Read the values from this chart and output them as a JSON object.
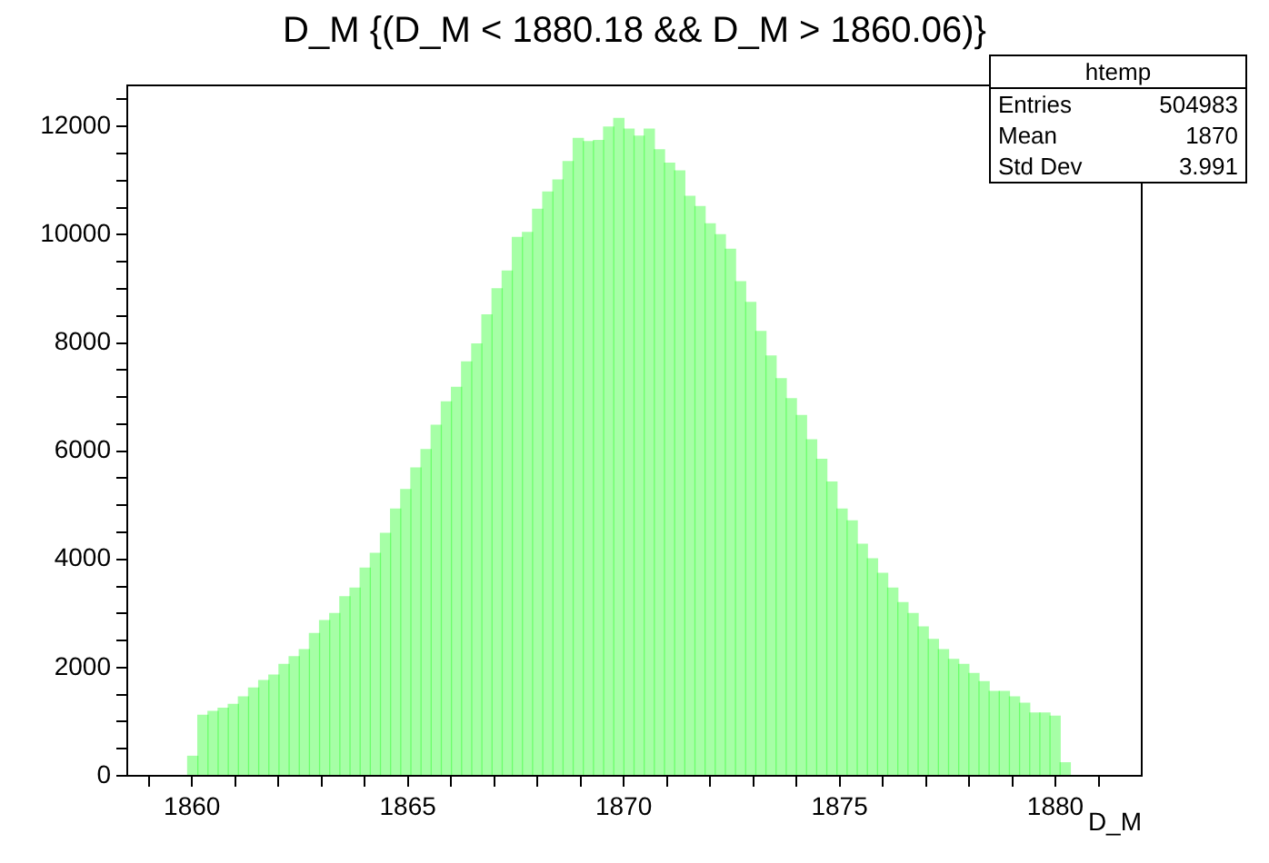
{
  "chart_data": {
    "type": "histogram",
    "title": "D_M {(D_M < 1880.18 && D_M > 1860.06)}",
    "xlabel": "D_M",
    "annotations": [
      "htemp",
      "Entries",
      "504983",
      "Mean",
      "1870",
      "Std Dev",
      "3.991"
    ],
    "bins": [
      1859.9,
      1860.135,
      1860.37,
      1860.605,
      1860.84,
      1861.075,
      1861.31,
      1861.545,
      1861.78,
      1862.015,
      1862.25,
      1862.485,
      1862.72,
      1862.955,
      1863.19,
      1863.425,
      1863.66,
      1863.895,
      1864.13,
      1864.365,
      1864.6,
      1864.835,
      1865.07,
      1865.305,
      1865.54,
      1865.775,
      1866.01,
      1866.245,
      1866.48,
      1866.715,
      1866.95,
      1867.185,
      1867.42,
      1867.655,
      1867.89,
      1868.125,
      1868.36,
      1868.595,
      1868.83,
      1869.065,
      1869.3,
      1869.535,
      1869.77,
      1870.005,
      1870.24,
      1870.475,
      1870.71,
      1870.945,
      1871.18,
      1871.415,
      1871.65,
      1871.885,
      1872.12,
      1872.355,
      1872.59,
      1872.825,
      1873.06,
      1873.295,
      1873.53,
      1873.765,
      1874.0,
      1874.235,
      1874.47,
      1874.705,
      1874.94,
      1875.175,
      1875.41,
      1875.645,
      1875.88,
      1876.115,
      1876.35,
      1876.585,
      1876.82,
      1877.055,
      1877.29,
      1877.525,
      1877.76,
      1877.995,
      1878.23,
      1878.465,
      1878.7,
      1878.935,
      1879.17,
      1879.405,
      1879.64,
      1879.875,
      1880.11,
      1880.345
    ],
    "values": [
      360,
      1120,
      1190,
      1250,
      1320,
      1460,
      1620,
      1760,
      1860,
      2060,
      2200,
      2330,
      2630,
      2870,
      3000,
      3310,
      3470,
      3840,
      4110,
      4480,
      4930,
      5290,
      5690,
      6030,
      6480,
      6910,
      7180,
      7650,
      7980,
      8520,
      9000,
      9330,
      9950,
      10040,
      10470,
      10790,
      11010,
      11350,
      11780,
      11720,
      11740,
      11990,
      12150,
      11950,
      11820,
      11950,
      11570,
      11320,
      11180,
      10710,
      10520,
      10200,
      10000,
      9730,
      9130,
      8750,
      8210,
      7760,
      7340,
      6970,
      6660,
      6210,
      5850,
      5430,
      4930,
      4710,
      4280,
      4010,
      3740,
      3470,
      3200,
      3000,
      2750,
      2520,
      2330,
      2150,
      2060,
      1890,
      1740,
      1560,
      1560,
      1460,
      1340,
      1160,
      1160,
      1100,
      240
    ],
    "color": "#00ff00",
    "xlim": [
      1858.5,
      1882
    ],
    "ylim": [
      0,
      12760
    ],
    "xticks": [
      {
        "value": 1859,
        "label": null
      },
      1860,
      {
        "value": 1861,
        "label": null
      },
      {
        "value": 1862,
        "label": null
      },
      {
        "value": 1863,
        "label": null
      },
      {
        "value": 1864,
        "label": null
      },
      1865,
      {
        "value": 1866,
        "label": null
      },
      {
        "value": 1867,
        "label": null
      },
      {
        "value": 1868,
        "label": null
      },
      {
        "value": 1869,
        "label": null
      },
      1870,
      {
        "value": 1871,
        "label": null
      },
      {
        "value": 1872,
        "label": null
      },
      {
        "value": 1873,
        "label": null
      },
      {
        "value": 1874,
        "label": null
      },
      1875,
      {
        "value": 1876,
        "label": null
      },
      {
        "value": 1877,
        "label": null
      },
      {
        "value": 1878,
        "label": null
      },
      {
        "value": 1879,
        "label": null
      },
      1880,
      {
        "value": 1881,
        "label": null
      }
    ],
    "yticks": [
      0,
      {
        "value": 500,
        "label": null
      },
      {
        "value": 1000,
        "label": null
      },
      {
        "value": 1500,
        "label": null
      },
      2000,
      {
        "value": 2500,
        "label": null
      },
      {
        "value": 3000,
        "label": null
      },
      {
        "value": 3500,
        "label": null
      },
      4000,
      {
        "value": 4500,
        "label": null
      },
      {
        "value": 5000,
        "label": null
      },
      {
        "value": 5500,
        "label": null
      },
      6000,
      {
        "value": 6500,
        "label": null
      },
      {
        "value": 7000,
        "label": null
      },
      {
        "value": 7500,
        "label": null
      },
      8000,
      {
        "value": 8500,
        "label": null
      },
      {
        "value": 9000,
        "label": null
      },
      {
        "value": 9500,
        "label": null
      },
      10000,
      {
        "value": 10500,
        "label": null
      },
      {
        "value": 11000,
        "label": null
      },
      {
        "value": 11500,
        "label": null
      },
      12000,
      {
        "value": 12500,
        "label": null
      }
    ],
    "grid": false,
    "legend": false
  }
}
